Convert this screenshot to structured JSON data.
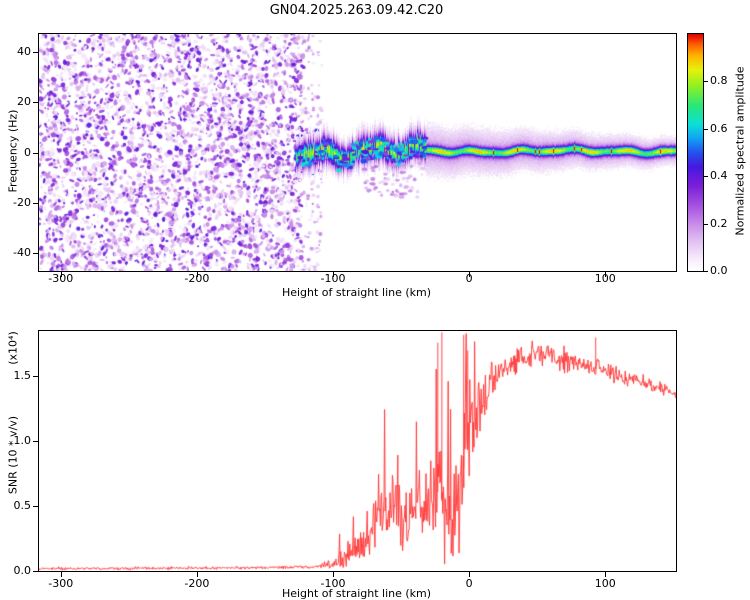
{
  "title": "GN04.2025.263.09.42.C20",
  "colors": {
    "background": "#ffffff",
    "frame": "#000000",
    "snr_line": "#ff3333"
  },
  "chart_data": [
    {
      "type": "heatmap",
      "panel": "spectrogram",
      "title": "GN04.2025.263.09.42.C20",
      "xlabel": "Height of straight line (km)",
      "ylabel": "Frequency (Hz)",
      "xlim": [
        -316,
        152
      ],
      "ylim": [
        -47,
        47
      ],
      "grid": false,
      "xticks": [
        {
          "v": -300,
          "label": "-300"
        },
        {
          "v": -200,
          "label": "-200"
        },
        {
          "v": -100,
          "label": "-100"
        },
        {
          "v": 0,
          "label": "0"
        },
        {
          "v": 100,
          "label": "100"
        }
      ],
      "yticks": [
        {
          "v": 40,
          "label": "40"
        },
        {
          "v": 20,
          "label": "20"
        },
        {
          "v": 0,
          "label": "0"
        },
        {
          "v": -20,
          "label": "-20"
        },
        {
          "v": -40,
          "label": "-40"
        }
      ],
      "colorbar": {
        "label": "Normalized spectral amplitude",
        "range": [
          0,
          1
        ],
        "ticks": [
          {
            "v": 0.0,
            "label": "0.0"
          },
          {
            "v": 0.2,
            "label": "0.2"
          },
          {
            "v": 0.4,
            "label": "0.4"
          },
          {
            "v": 0.6,
            "label": "0.6"
          },
          {
            "v": 0.8,
            "label": "0.8"
          }
        ]
      },
      "colormap": [
        [
          0.0,
          "#ffffff"
        ],
        [
          0.05,
          "#f7ecfb"
        ],
        [
          0.12,
          "#e3c4f3"
        ],
        [
          0.2,
          "#c88ae8"
        ],
        [
          0.28,
          "#a34fe0"
        ],
        [
          0.36,
          "#7a1fd8"
        ],
        [
          0.44,
          "#4718e0"
        ],
        [
          0.5,
          "#2353ee"
        ],
        [
          0.56,
          "#12a3f5"
        ],
        [
          0.62,
          "#0be0d8"
        ],
        [
          0.7,
          "#2ae877"
        ],
        [
          0.78,
          "#8ef024"
        ],
        [
          0.85,
          "#e6f20a"
        ],
        [
          0.91,
          "#ffb400"
        ],
        [
          0.96,
          "#ff5a00"
        ],
        [
          1.0,
          "#e10000"
        ]
      ],
      "noise_region": {
        "x_start": -316,
        "x_end": -122,
        "amplitude_range": [
          0.05,
          0.42
        ]
      },
      "signal_band": {
        "x_start": -127,
        "x_end": 152,
        "turbulent_until": -32,
        "center_hz": 0.5,
        "core_amplitude_turbulent": [
          0.45,
          0.72
        ],
        "core_amplitude_stable": [
          0.55,
          0.75
        ],
        "peak_amplitude": 0.97,
        "core_width_hz_turbulent": [
          1.8,
          3.6
        ],
        "core_width_hz_stable": 1.2,
        "halo_width_hz": [
          4,
          7
        ]
      }
    },
    {
      "type": "line",
      "panel": "snr",
      "xlabel": "Height of straight line (km)",
      "ylabel": "SNR (10 * v/v)",
      "ylabel_scale": "(x10⁴)",
      "xlim": [
        -316,
        152
      ],
      "ylim": [
        0,
        1.85
      ],
      "grid": false,
      "line_color": "#ff3333",
      "xticks": [
        {
          "v": -300,
          "label": "-300"
        },
        {
          "v": -200,
          "label": "-200"
        },
        {
          "v": -100,
          "label": "-100"
        },
        {
          "v": 0,
          "label": "0"
        },
        {
          "v": 100,
          "label": "100"
        }
      ],
      "yticks": [
        {
          "v": 0,
          "label": "0.0"
        },
        {
          "v": 0.5,
          "label": "0.5"
        },
        {
          "v": 1.0,
          "label": "1.0"
        },
        {
          "v": 1.5,
          "label": "1.5"
        }
      ],
      "envelope": [
        [
          -316,
          0.018,
          0.01
        ],
        [
          -250,
          0.02,
          0.01
        ],
        [
          -180,
          0.024,
          0.011
        ],
        [
          -130,
          0.028,
          0.013
        ],
        [
          -112,
          0.035,
          0.018
        ],
        [
          -102,
          0.055,
          0.035
        ],
        [
          -95,
          0.09,
          0.06
        ],
        [
          -88,
          0.13,
          0.09
        ],
        [
          -80,
          0.2,
          0.12
        ],
        [
          -72,
          0.3,
          0.16
        ],
        [
          -64,
          0.42,
          0.2
        ],
        [
          -56,
          0.5,
          0.24
        ],
        [
          -50,
          0.46,
          0.26
        ],
        [
          -45,
          0.38,
          0.28
        ],
        [
          -40,
          0.55,
          0.3
        ],
        [
          -34,
          0.48,
          0.32
        ],
        [
          -28,
          0.55,
          0.38
        ],
        [
          -22,
          0.62,
          0.5
        ],
        [
          -17,
          0.42,
          0.38
        ],
        [
          -12,
          0.4,
          0.32
        ],
        [
          -7,
          0.6,
          0.42
        ],
        [
          -3,
          0.85,
          0.45
        ],
        [
          0,
          1.0,
          0.35
        ],
        [
          4,
          1.15,
          0.28
        ],
        [
          9,
          1.3,
          0.2
        ],
        [
          15,
          1.45,
          0.14
        ],
        [
          22,
          1.54,
          0.11
        ],
        [
          32,
          1.62,
          0.1
        ],
        [
          45,
          1.66,
          0.1
        ],
        [
          58,
          1.67,
          0.09
        ],
        [
          70,
          1.63,
          0.08
        ],
        [
          82,
          1.59,
          0.09
        ],
        [
          95,
          1.55,
          0.08
        ],
        [
          110,
          1.5,
          0.06
        ],
        [
          125,
          1.46,
          0.05
        ],
        [
          140,
          1.41,
          0.04
        ],
        [
          152,
          1.37,
          0.035
        ]
      ],
      "spikes": [
        [
          -23,
          1.76
        ],
        [
          -20,
          1.84
        ],
        [
          -4,
          1.82
        ],
        [
          -1,
          1.7
        ],
        [
          58,
          1.74
        ],
        [
          93,
          1.8
        ]
      ]
    }
  ]
}
